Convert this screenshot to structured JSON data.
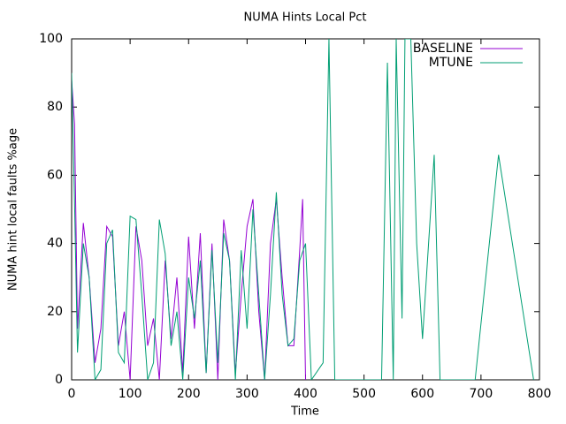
{
  "chart_data": {
    "type": "line",
    "title": "NUMA Hints Local Pct",
    "x_label": "Time",
    "y_label": "NUMA hint local faults %age",
    "xlim": [
      0,
      800
    ],
    "xticks": [
      0,
      100,
      200,
      300,
      400,
      500,
      600,
      700,
      800
    ],
    "ylim": [
      0,
      100
    ],
    "yticks": [
      0,
      20,
      40,
      60,
      80,
      100
    ],
    "legend": "top-right",
    "series": [
      {
        "name": "BASELINE",
        "color": "#9400d3",
        "x": [
          0,
          5,
          10,
          20,
          30,
          40,
          50,
          60,
          70,
          80,
          90,
          100,
          110,
          120,
          130,
          140,
          150,
          160,
          170,
          180,
          190,
          200,
          210,
          220,
          230,
          240,
          250,
          260,
          270,
          280,
          290,
          300,
          310,
          320,
          330,
          340,
          350,
          360,
          370,
          380,
          390,
          395,
          400
        ],
        "values": [
          88,
          75,
          15,
          46,
          30,
          5,
          15,
          45,
          42,
          10,
          20,
          0,
          45,
          35,
          10,
          18,
          0,
          35,
          12,
          30,
          2,
          42,
          15,
          43,
          2,
          40,
          0,
          47,
          35,
          2,
          25,
          45,
          53,
          20,
          0,
          40,
          53,
          30,
          10,
          10,
          38,
          53,
          0
        ]
      },
      {
        "name": "MTUNE",
        "color": "#009e73",
        "x": [
          0,
          5,
          10,
          20,
          30,
          40,
          50,
          60,
          70,
          80,
          90,
          100,
          110,
          120,
          130,
          140,
          150,
          160,
          170,
          180,
          190,
          200,
          210,
          220,
          230,
          240,
          250,
          260,
          270,
          280,
          290,
          300,
          310,
          320,
          330,
          340,
          350,
          360,
          370,
          380,
          390,
          400,
          410,
          430,
          440,
          450,
          530,
          540,
          550,
          555,
          565,
          570,
          580,
          590,
          600,
          620,
          630,
          690,
          730,
          790
        ],
        "values": [
          90,
          52,
          8,
          40,
          30,
          0,
          3,
          40,
          44,
          8,
          5,
          48,
          47,
          25,
          0,
          5,
          47,
          37,
          10,
          20,
          0,
          30,
          18,
          35,
          2,
          38,
          5,
          43,
          35,
          0,
          38,
          15,
          50,
          25,
          0,
          25,
          55,
          25,
          10,
          12,
          35,
          40,
          0,
          5,
          100,
          0,
          0,
          93,
          0,
          100,
          18,
          100,
          100,
          40,
          12,
          66,
          0,
          0,
          66,
          0
        ]
      }
    ]
  }
}
